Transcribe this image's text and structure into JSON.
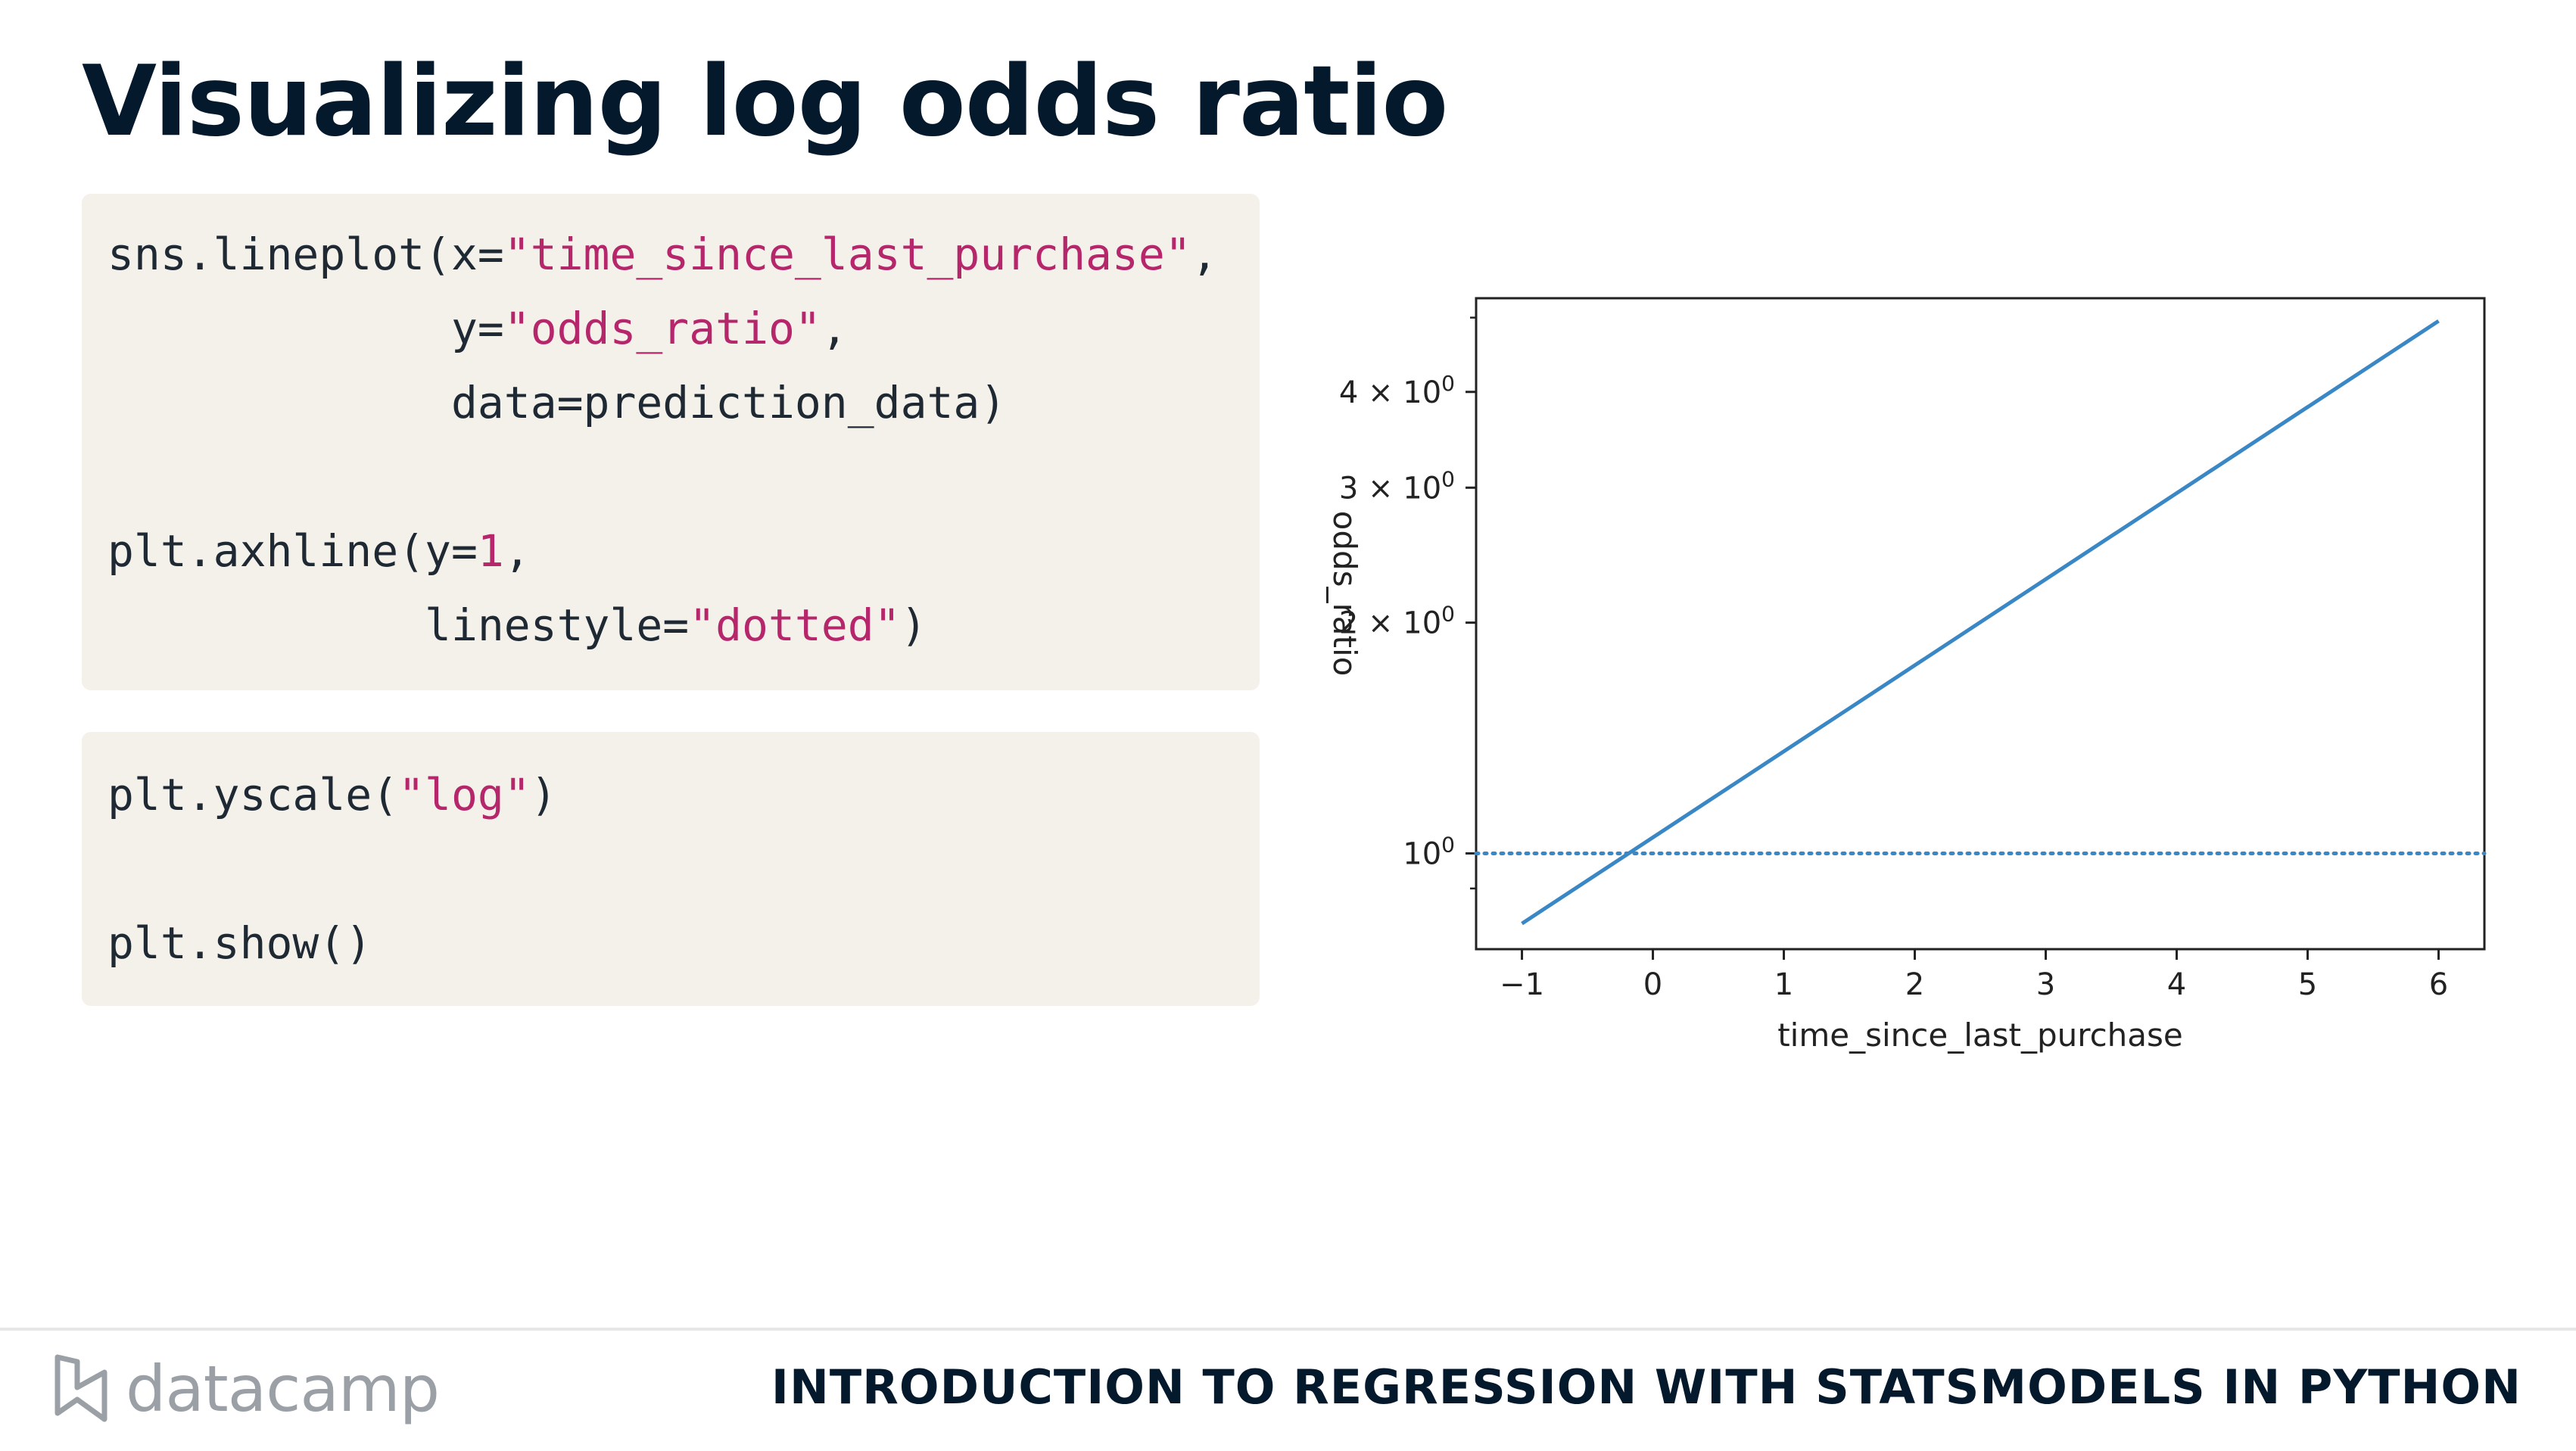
{
  "title": "Visualizing log odds ratio",
  "code_block_1": [
    [
      {
        "t": "sns.lineplot(x=",
        "c": "plain"
      },
      {
        "t": "\"time_since_last_purchase\"",
        "c": "str"
      },
      {
        "t": ",",
        "c": "plain"
      }
    ],
    [
      {
        "t": "             y=",
        "c": "plain"
      },
      {
        "t": "\"odds_ratio\"",
        "c": "str"
      },
      {
        "t": ",",
        "c": "plain"
      }
    ],
    [
      {
        "t": "             data=prediction_data)",
        "c": "plain"
      }
    ],
    [
      {
        "t": "",
        "c": "plain"
      }
    ],
    [
      {
        "t": "plt.axhline(y=",
        "c": "plain"
      },
      {
        "t": "1",
        "c": "num"
      },
      {
        "t": ",",
        "c": "plain"
      }
    ],
    [
      {
        "t": "            linestyle=",
        "c": "plain"
      },
      {
        "t": "\"dotted\"",
        "c": "str"
      },
      {
        "t": ")",
        "c": "plain"
      }
    ]
  ],
  "code_block_2": [
    [
      {
        "t": "plt.yscale(",
        "c": "plain"
      },
      {
        "t": "\"log\"",
        "c": "str"
      },
      {
        "t": ")",
        "c": "plain"
      }
    ],
    [
      {
        "t": "",
        "c": "plain"
      }
    ],
    [
      {
        "t": "plt.show()",
        "c": "plain"
      }
    ]
  ],
  "chart_data": {
    "type": "line",
    "xlabel": "time_since_last_purchase",
    "ylabel": "odds_ratio",
    "yscale": "log",
    "xlim": [
      -1.35,
      6.35
    ],
    "ylim": [
      0.75,
      5.3
    ],
    "xticks": [
      -1,
      0,
      1,
      2,
      3,
      4,
      5,
      6
    ],
    "xtick_labels": [
      "−1",
      "0",
      "1",
      "2",
      "3",
      "4",
      "5",
      "6"
    ],
    "yticks": [
      {
        "value": 1,
        "base": "10",
        "exp": "0",
        "coef": ""
      },
      {
        "value": 2,
        "base": "10",
        "exp": "0",
        "coef": "2 × "
      },
      {
        "value": 3,
        "base": "10",
        "exp": "0",
        "coef": "3 × "
      },
      {
        "value": 4,
        "base": "10",
        "exp": "0",
        "coef": "4 × "
      }
    ],
    "minor_yticks": [
      0.9,
      5
    ],
    "series": [
      {
        "x": [
          -1,
          6
        ],
        "y": [
          0.81,
          4.95
        ],
        "color": "#3a87c6",
        "style": "solid"
      }
    ],
    "hline": {
      "y": 1,
      "color": "#3a87c6",
      "style": "dotted"
    },
    "grid": false
  },
  "footer": {
    "brand": "datacamp",
    "course": "INTRODUCTION TO REGRESSION WITH STATSMODELS IN PYTHON"
  }
}
